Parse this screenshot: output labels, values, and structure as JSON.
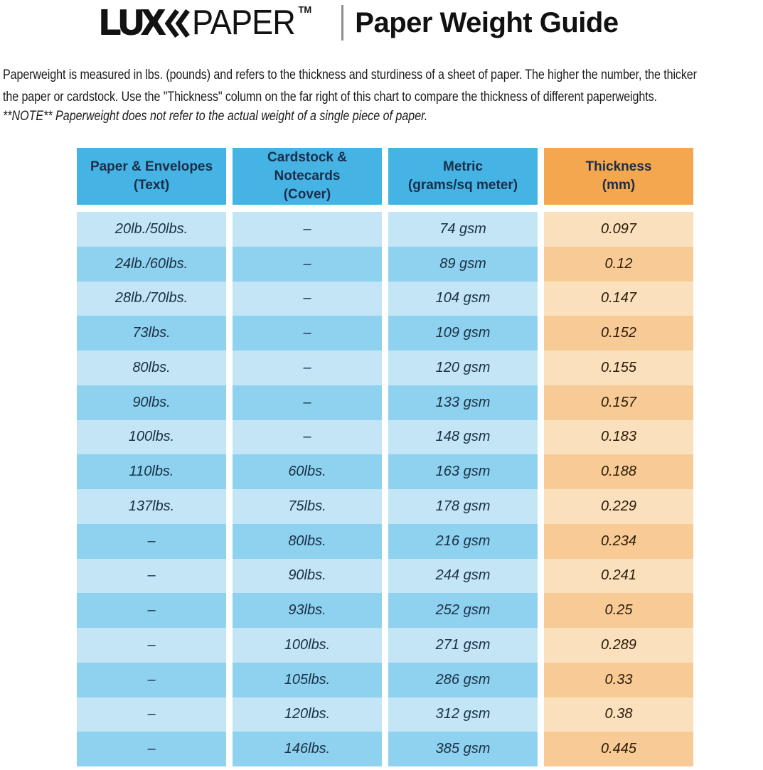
{
  "header": {
    "logo_lux": "LUX",
    "logo_paper": "PAPER",
    "trademark": "TM",
    "title": "Paper Weight Guide"
  },
  "intro": {
    "lines": [
      "Paperweight is measured in lbs. (pounds) and refers to the thickness and sturdiness of a sheet of paper. The higher the number, the thicker",
      "the paper or cardstock. Use the \"Thickness\" column on the far right of this chart to compare the thickness of different paperweights."
    ],
    "note": "**NOTE** Paperweight does not refer to the actual weight of a single piece of paper."
  },
  "table": {
    "columns": [
      {
        "label": "Paper & Envelopes",
        "sublabel": "(Text)",
        "theme": "blue"
      },
      {
        "label": "Cardstock & Notecards",
        "sublabel": "(Cover)",
        "theme": "blue"
      },
      {
        "label": "Metric",
        "sublabel": "(grams/sq meter)",
        "theme": "blue"
      },
      {
        "label": "Thickness",
        "sublabel": "(mm)",
        "theme": "orange"
      }
    ]
  },
  "chart_data": {
    "type": "table",
    "title": "Paper Weight Guide",
    "columns": [
      "Paper & Envelopes (Text)",
      "Cardstock & Notecards (Cover)",
      "Metric (grams/sq meter)",
      "Thickness (mm)"
    ],
    "rows": [
      [
        "20lb./50lbs.",
        "–",
        "74 gsm",
        "0.097"
      ],
      [
        "24lb./60lbs.",
        "–",
        "89 gsm",
        "0.12"
      ],
      [
        "28lb./70lbs.",
        "–",
        "104 gsm",
        "0.147"
      ],
      [
        "73lbs.",
        "–",
        "109 gsm",
        "0.152"
      ],
      [
        "80lbs.",
        "–",
        "120 gsm",
        "0.155"
      ],
      [
        "90lbs.",
        "–",
        "133 gsm",
        "0.157"
      ],
      [
        "100lbs.",
        "–",
        "148 gsm",
        "0.183"
      ],
      [
        "110lbs.",
        "60lbs.",
        "163 gsm",
        "0.188"
      ],
      [
        "137lbs.",
        "75lbs.",
        "178 gsm",
        "0.229"
      ],
      [
        "–",
        "80lbs.",
        "216 gsm",
        "0.234"
      ],
      [
        "–",
        "90lbs.",
        "244 gsm",
        "0.241"
      ],
      [
        "–",
        "93lbs.",
        "252 gsm",
        "0.25"
      ],
      [
        "–",
        "100lbs.",
        "271 gsm",
        "0.289"
      ],
      [
        "–",
        "105lbs.",
        "286 gsm",
        "0.33"
      ],
      [
        "–",
        "120lbs.",
        "312 gsm",
        "0.38"
      ],
      [
        "–",
        "146lbs.",
        "385 gsm",
        "0.445"
      ]
    ]
  },
  "colors": {
    "header_blue": "#45b4e4",
    "header_orange": "#f4a74f",
    "row_blue_light": "#c3e5f6",
    "row_blue_dark": "#8fd2ef",
    "row_orange_light": "#fbe0bd",
    "row_orange_dark": "#f8cb96",
    "header_text": "#1c2d4a",
    "cell_text_blue": "#1a3044",
    "cell_text_orange": "#2b1c08"
  }
}
